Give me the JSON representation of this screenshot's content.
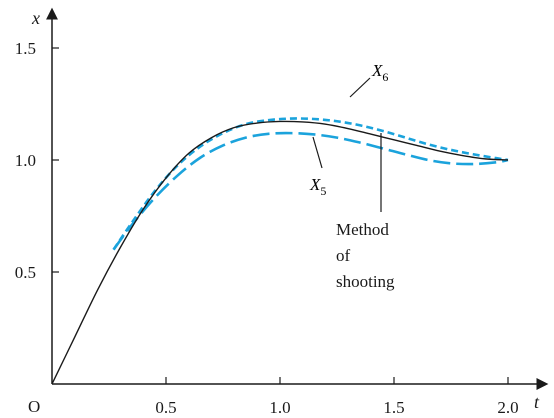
{
  "chart_data": {
    "type": "line",
    "title": "",
    "xlabel": "t",
    "ylabel": "x",
    "origin_label": "O",
    "xlim": [
      0,
      2.15
    ],
    "ylim": [
      0,
      1.75
    ],
    "x_ticks": [
      {
        "value": 0.5,
        "label": "0.5"
      },
      {
        "value": 1.0,
        "label": "1.0"
      },
      {
        "value": 1.5,
        "label": "1.5"
      },
      {
        "value": 2.0,
        "label": "2.0"
      }
    ],
    "y_ticks": [
      {
        "value": 0.5,
        "label": "0.5"
      },
      {
        "value": 1.0,
        "label": "1.0"
      },
      {
        "value": 1.5,
        "label": "1.5"
      }
    ],
    "grid": false,
    "series": [
      {
        "name": "Method of shooting",
        "style": "solid",
        "color": "#1a1a1a",
        "x": [
          0,
          0.1,
          0.2,
          0.3,
          0.4,
          0.5,
          0.6,
          0.7,
          0.8,
          0.9,
          1.0,
          1.1,
          1.2,
          1.3,
          1.4,
          1.5,
          1.6,
          1.7,
          1.8,
          1.9,
          2.0
        ],
        "y": [
          0,
          0.21,
          0.42,
          0.61,
          0.78,
          0.92,
          1.03,
          1.1,
          1.145,
          1.165,
          1.172,
          1.17,
          1.16,
          1.14,
          1.115,
          1.09,
          1.065,
          1.04,
          1.02,
          1.005,
          1.0
        ]
      },
      {
        "name": "X6",
        "label_main": "X",
        "label_sub": "6",
        "style": "short-dash",
        "color": "#1ba3dc",
        "x": [
          0.27,
          0.35,
          0.45,
          0.55,
          0.65,
          0.75,
          0.85,
          0.95,
          1.05,
          1.15,
          1.25,
          1.35,
          1.45,
          1.55,
          1.65,
          1.75,
          1.85,
          1.95,
          2.0
        ],
        "y": [
          0.6,
          0.72,
          0.86,
          0.975,
          1.06,
          1.12,
          1.16,
          1.178,
          1.185,
          1.183,
          1.173,
          1.155,
          1.13,
          1.1,
          1.07,
          1.045,
          1.025,
          1.008,
          1.0
        ]
      },
      {
        "name": "X5",
        "label_main": "X",
        "label_sub": "5",
        "style": "long-dash",
        "color": "#1ba3dc",
        "x": [
          0.27,
          0.35,
          0.45,
          0.55,
          0.65,
          0.75,
          0.85,
          0.95,
          1.05,
          1.15,
          1.25,
          1.35,
          1.45,
          1.55,
          1.65,
          1.75,
          1.85,
          1.95,
          2.0
        ],
        "y": [
          0.6,
          0.71,
          0.83,
          0.93,
          1.01,
          1.065,
          1.1,
          1.117,
          1.12,
          1.114,
          1.1,
          1.078,
          1.052,
          1.025,
          1.0,
          0.985,
          0.982,
          0.99,
          1.0
        ]
      }
    ],
    "annotations": {
      "x6": {
        "main": "X",
        "sub": "6"
      },
      "x5": {
        "main": "X",
        "sub": "5"
      },
      "shooting": [
        "Method",
        "of",
        "shooting"
      ]
    }
  }
}
